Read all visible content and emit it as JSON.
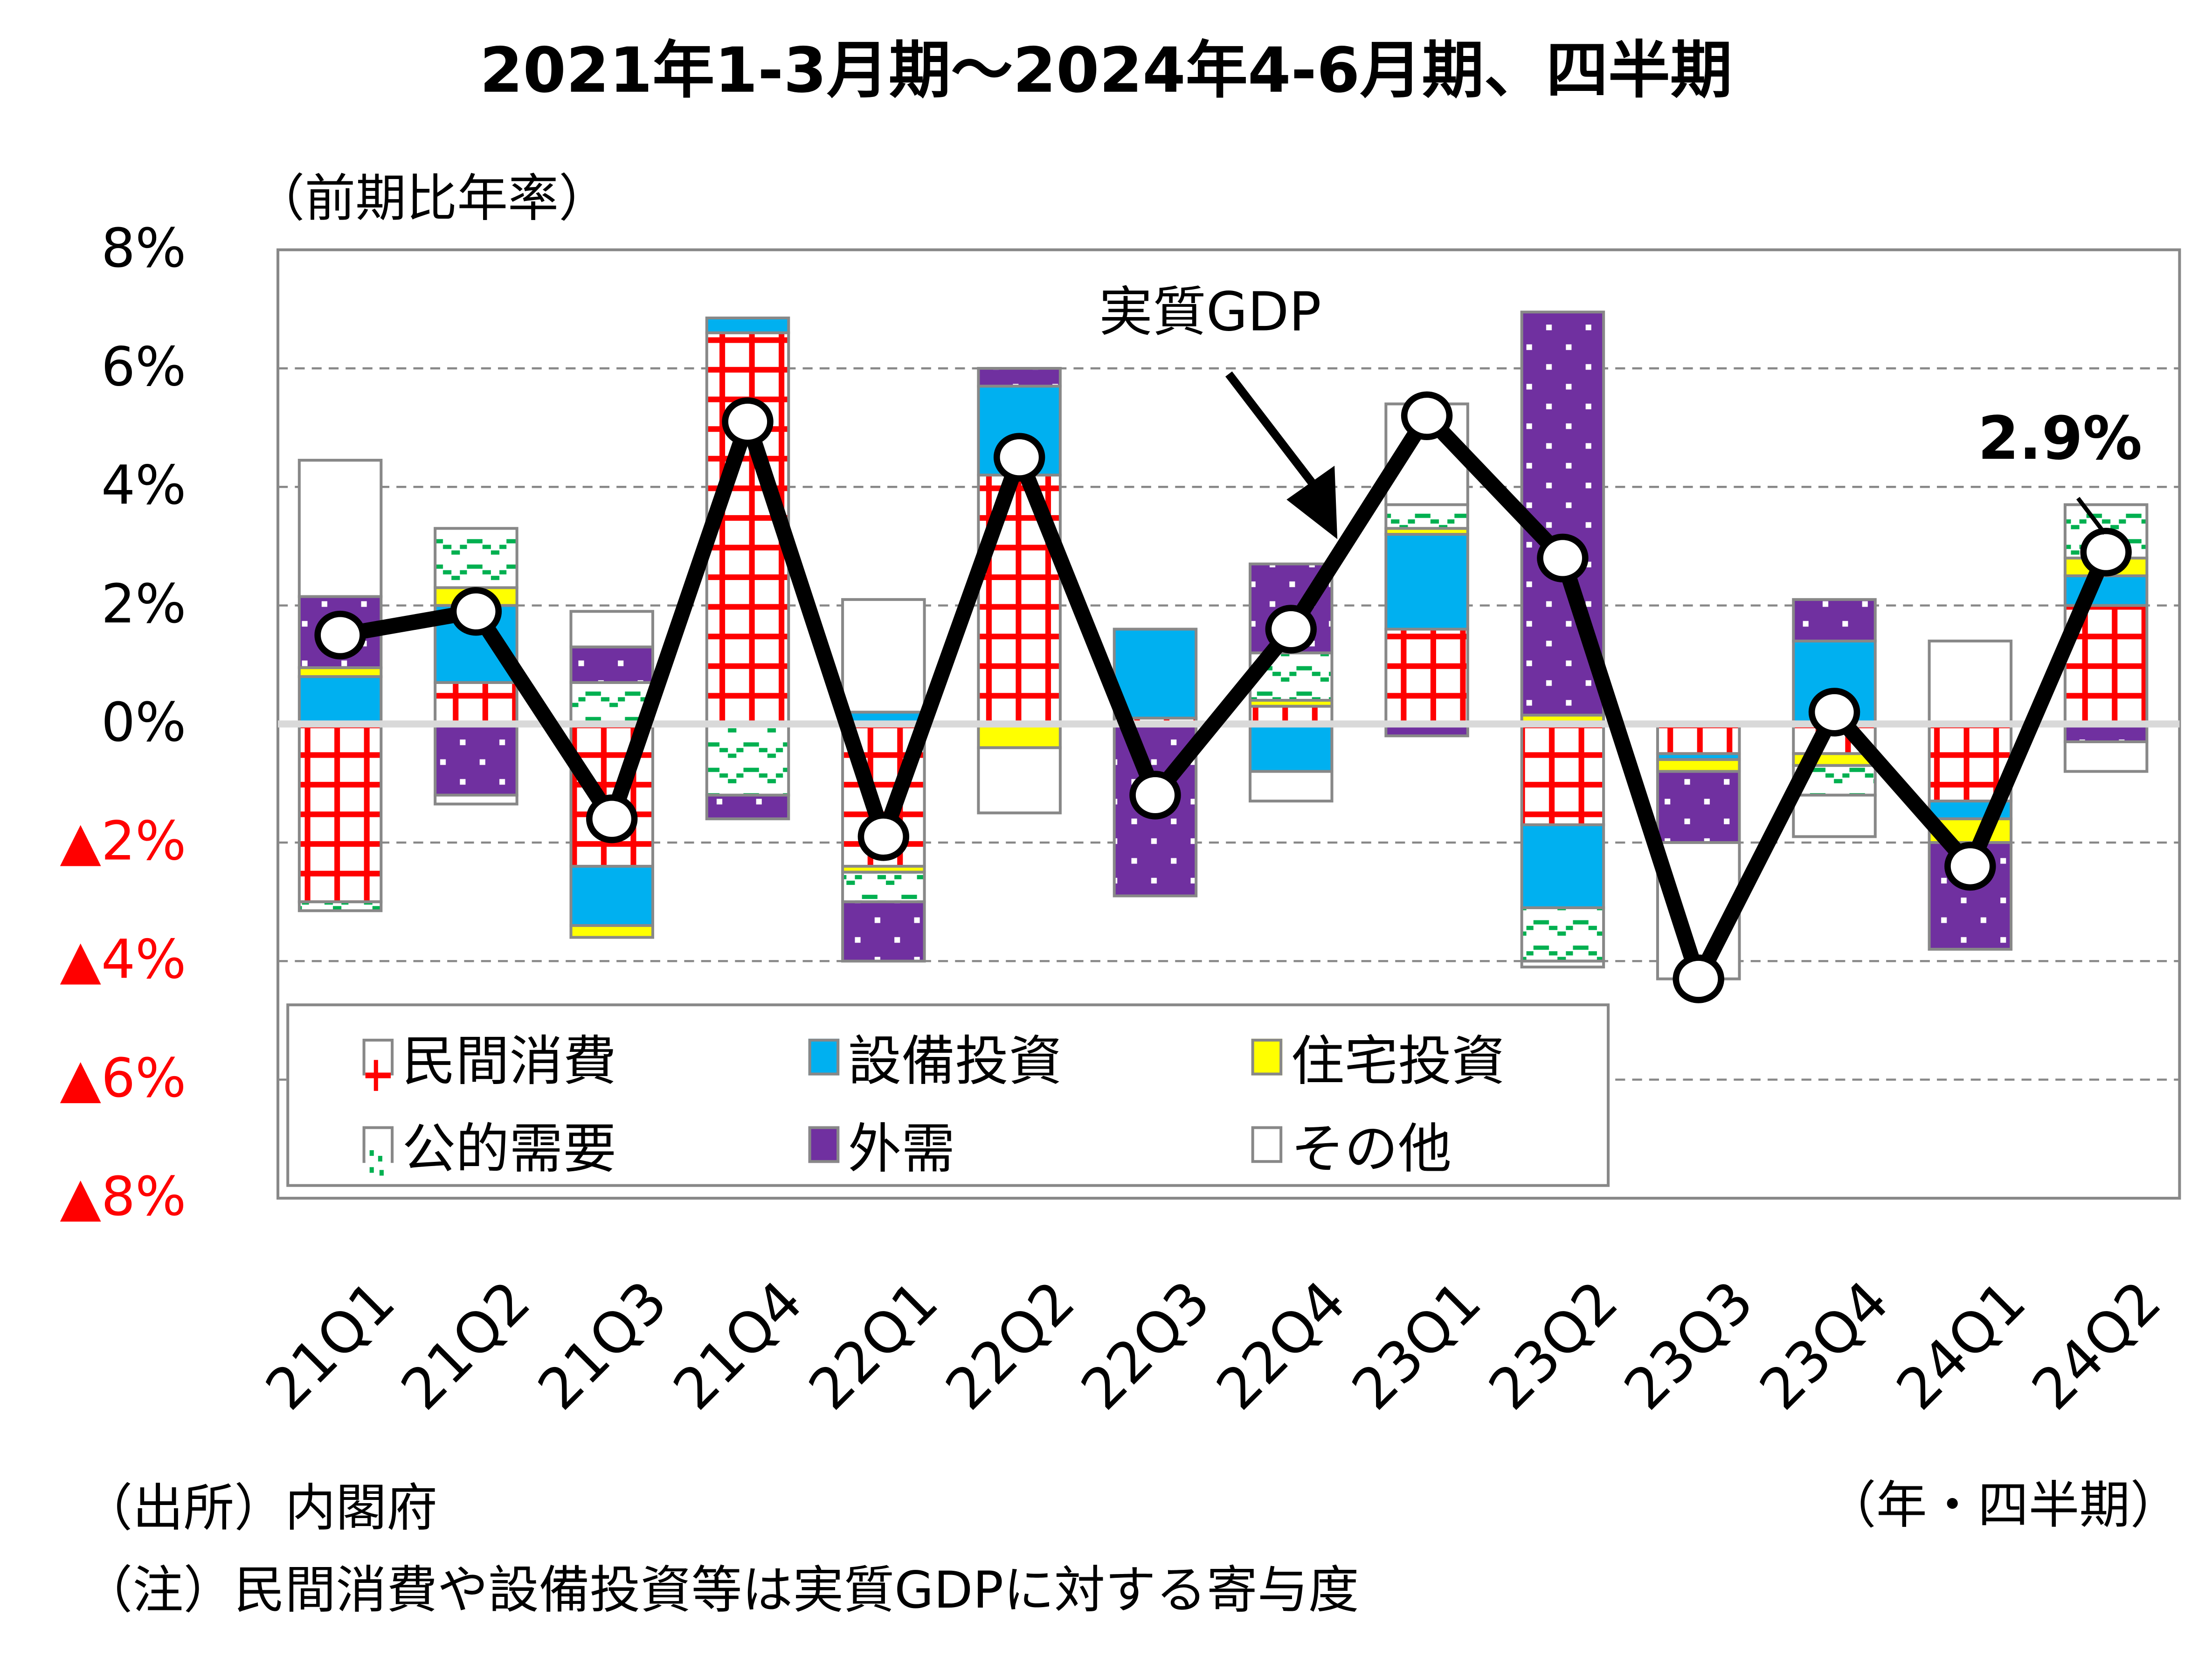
{
  "chart_data": {
    "type": "bar",
    "subtype": "stacked-bar-with-line",
    "title": "2021年1-3月期～2024年4-6月期、四半期",
    "ylabel": "（前期比年率）",
    "xlabel": "（年・四半期）",
    "ylim": [
      -8,
      8
    ],
    "yticks": [
      8,
      6,
      4,
      2,
      0,
      -2,
      -4,
      -6,
      -8
    ],
    "ytick_labels": [
      "8%",
      "6%",
      "4%",
      "2%",
      "0%",
      "▲2%",
      "▲4%",
      "▲6%",
      "▲8%"
    ],
    "grid": true,
    "categories": [
      "21Q1",
      "21Q2",
      "21Q3",
      "21Q4",
      "22Q1",
      "22Q2",
      "22Q3",
      "22Q4",
      "23Q1",
      "23Q2",
      "23Q3",
      "23Q4",
      "24Q1",
      "24Q2"
    ],
    "series": [
      {
        "name": "民間消費",
        "color": "#ff0000",
        "pattern": "grid",
        "values": [
          -3.0,
          0.7,
          -2.4,
          6.6,
          -2.4,
          4.2,
          0.1,
          0.3,
          1.6,
          -1.7,
          -0.5,
          -0.5,
          -1.3,
          2.0
        ]
      },
      {
        "name": "設備投資",
        "color": "#00b0f0",
        "pattern": "solid",
        "values": [
          0.8,
          1.3,
          -1.0,
          0.25,
          0.2,
          1.5,
          1.5,
          -0.8,
          1.6,
          -1.4,
          -0.1,
          1.4,
          -0.3,
          0.5
        ]
      },
      {
        "name": "住宅投資",
        "color": "#ffff00",
        "pattern": "solid",
        "values": [
          0.15,
          0.3,
          -0.2,
          0.0,
          -0.1,
          -0.4,
          0.0,
          0.1,
          0.1,
          0.15,
          -0.2,
          -0.2,
          -0.4,
          0.3
        ]
      },
      {
        "name": "公的需要",
        "color": "#00b050",
        "pattern": "wave",
        "values": [
          -0.15,
          1.0,
          0.7,
          -1.2,
          -0.5,
          0.0,
          0.0,
          0.8,
          0.4,
          -0.9,
          0.0,
          -0.5,
          0.0,
          0.9
        ]
      },
      {
        "name": "外需",
        "color": "#7030a0",
        "pattern": "dots",
        "values": [
          1.2,
          -1.2,
          0.6,
          -0.4,
          -1.0,
          0.3,
          -2.9,
          1.5,
          -0.2,
          6.8,
          -1.2,
          0.7,
          -1.8,
          -0.3
        ]
      },
      {
        "name": "その他",
        "color": "#ffffff",
        "pattern": "solid",
        "values": [
          2.3,
          -0.15,
          0.6,
          0.0,
          1.9,
          -1.1,
          0.0,
          -0.5,
          1.7,
          -0.1,
          -2.3,
          -0.7,
          1.4,
          -0.5
        ]
      }
    ],
    "line": {
      "name": "実質GDP",
      "values": [
        1.5,
        1.9,
        -1.6,
        5.1,
        -1.9,
        4.5,
        -1.2,
        1.6,
        5.2,
        2.8,
        -4.3,
        0.2,
        -2.4,
        2.9
      ]
    },
    "annotations": [
      {
        "text": "実質GDP",
        "type": "arrow-callout",
        "target": "22Q4"
      },
      {
        "text": "2.9%",
        "target": "24Q2"
      }
    ],
    "legend": {
      "position": "bottom-left-inside",
      "entries": [
        "民間消費",
        "設備投資",
        "住宅投資",
        "公的需要",
        "外需",
        "その他"
      ]
    }
  },
  "notes": {
    "source": "（出所）内閣府",
    "note": "（注）民間消費や設備投資等は実質GDPに対する寄与度",
    "xunit": "（年・四半期）"
  }
}
